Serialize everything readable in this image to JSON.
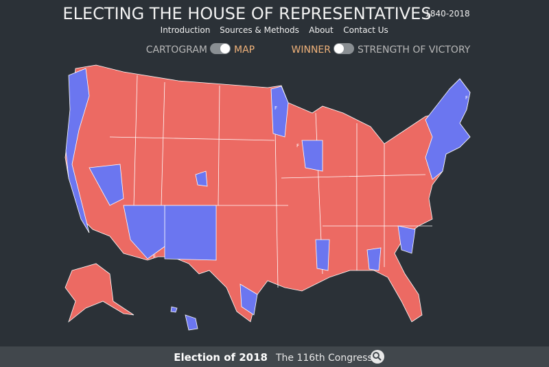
{
  "header": {
    "title": "ELECTING THE HOUSE OF REPRESENTATIVES",
    "years": "1840-2018"
  },
  "nav": {
    "links": [
      "Introduction",
      "Sources & Methods",
      "About",
      "Contact Us"
    ]
  },
  "toggles": {
    "view_off": "CARTOGRAM",
    "view_on": "MAP",
    "mode_on": "WINNER",
    "mode_off": "STRENGTH OF VICTORY"
  },
  "map": {
    "marker": "F"
  },
  "footer": {
    "election": "Election of 2018",
    "congress": "The 116th Congress"
  }
}
